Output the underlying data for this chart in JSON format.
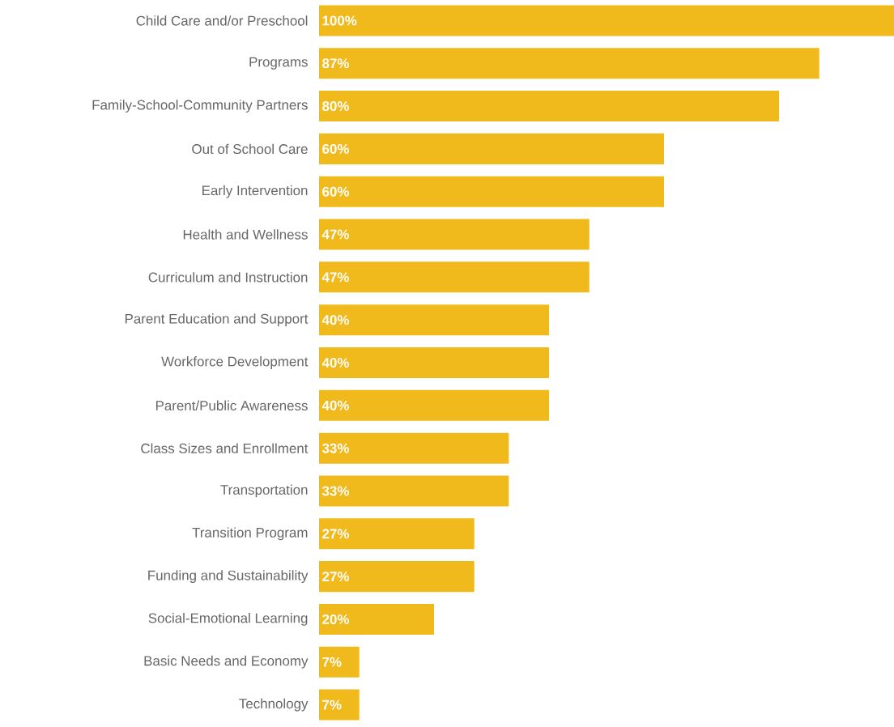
{
  "chart_data": {
    "type": "bar",
    "orientation": "horizontal",
    "categories": [
      "Child Care and/or Preschool",
      "Programs",
      "Family-School-Community Partners",
      "Out of School Care",
      "Early Intervention",
      "Health and Wellness",
      "Curriculum and Instruction",
      "Parent Education and Support",
      "Workforce Development",
      "Parent/Public Awareness",
      "Class Sizes and Enrollment",
      "Transportation",
      "Transition Program",
      "Funding and Sustainability",
      "Social-Emotional Learning",
      "Basic Needs and Economy",
      "Technology"
    ],
    "values": [
      100,
      87,
      80,
      60,
      60,
      47,
      47,
      40,
      40,
      40,
      33,
      33,
      27,
      27,
      20,
      7,
      7
    ],
    "value_labels": [
      "100%",
      "87%",
      "80%",
      "60%",
      "60%",
      "47%",
      "47%",
      "40%",
      "40%",
      "40%",
      "33%",
      "33%",
      "27%",
      "27%",
      "20%",
      "7%",
      "7%"
    ],
    "color": "#f0b91c",
    "xlim": [
      0,
      100
    ]
  }
}
